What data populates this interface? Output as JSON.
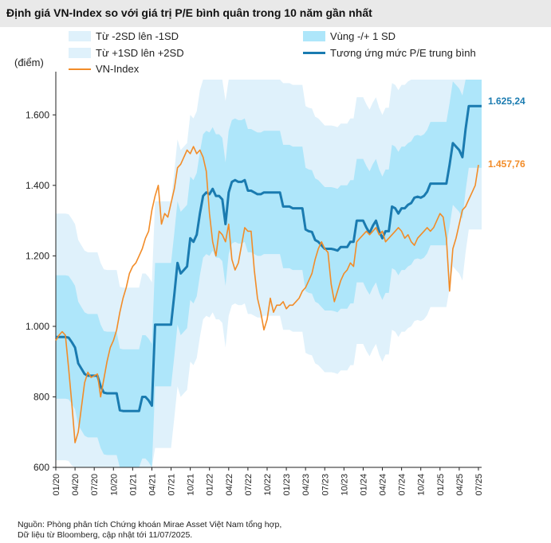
{
  "chart_data": {
    "type": "area",
    "title": "Định giá VN-Index so với giá trị P/E bình quân trong 10 năm gần nhất",
    "ylabel": "(điểm)",
    "ylim": [
      600,
      1700
    ],
    "yticks": [
      600,
      800,
      1000,
      1200,
      1400,
      1600
    ],
    "ytick_labels": [
      "600",
      "800",
      "1.000",
      "1.200",
      "1.400",
      "1.600"
    ],
    "x_tick_labels": [
      "01/20",
      "04/20",
      "07/20",
      "10/20",
      "01/21",
      "04/21",
      "07/21",
      "10/21",
      "01/22",
      "04/22",
      "07/22",
      "10/22",
      "01/23",
      "04/23",
      "07/23",
      "10/23",
      "01/24",
      "04/24",
      "07/24",
      "10/24",
      "01/25",
      "04/25",
      "07/25"
    ],
    "legend": [
      {
        "label": "Từ -2SD lên -1SD",
        "color": "#dff1fb"
      },
      {
        "label": "Vùng -/+ 1 SD",
        "color": "#aee6fa"
      },
      {
        "label": "Từ +1SD lên +2SD",
        "color": "#dff1fb"
      },
      {
        "label": "Tương ứng mức P/E trung bình",
        "color": "#1a7bb0"
      },
      {
        "label": "VN-Index",
        "color": "#f28c28"
      }
    ],
    "colors": {
      "outer_band": "#dff1fb",
      "inner_band": "#aee6fa",
      "pe_line": "#1a7bb0",
      "index_line": "#f28c28",
      "axis": "#222222"
    },
    "x_months": [
      0,
      0.5,
      1,
      1.5,
      2,
      2.5,
      3,
      3.5,
      4,
      4.5,
      5,
      5.5,
      6,
      6.5,
      7,
      7.5,
      8,
      8.5,
      9,
      9.5,
      10,
      10.5,
      11,
      11.5,
      12,
      12.5,
      13,
      13.5,
      14,
      14.5,
      15,
      15.5,
      16,
      16.5,
      17,
      17.5,
      18,
      18.5,
      19,
      19.5,
      20,
      20.5,
      21,
      21.5,
      22,
      22.5,
      23,
      23.5,
      24,
      24.5,
      25,
      25.5,
      26,
      26.5,
      27,
      27.5,
      28,
      28.5,
      29,
      29.5,
      30,
      30.5,
      31,
      31.5,
      32,
      32.5,
      33,
      33.5,
      34,
      34.5,
      35,
      35.5,
      36,
      36.5,
      37,
      37.5,
      38,
      38.5,
      39,
      39.5,
      40,
      40.5,
      41,
      41.5,
      42,
      42.5,
      43,
      43.5,
      44,
      44.5,
      45,
      45.5,
      46,
      46.5,
      47,
      47.5,
      48,
      48.5,
      49,
      49.5,
      50,
      50.5,
      51,
      51.5,
      52,
      52.5,
      53,
      53.5,
      54,
      54.5,
      55,
      55.5,
      56,
      56.5,
      57,
      57.5,
      58,
      58.5,
      59,
      59.5,
      60,
      60.5,
      61,
      61.5,
      62,
      62.5,
      63,
      63.5,
      64,
      64.5,
      65,
      65.5,
      66,
      66.5
    ],
    "series": [
      {
        "name": "Tương ứng mức P/E trung bình",
        "values": [
          970,
          970,
          970,
          970,
          968,
          955,
          940,
          895,
          880,
          865,
          860,
          860,
          860,
          860,
          830,
          812,
          810,
          810,
          810,
          810,
          762,
          760,
          760,
          760,
          760,
          760,
          760,
          800,
          800,
          790,
          775,
          1005,
          1005,
          1005,
          1005,
          1005,
          1005,
          1090,
          1180,
          1150,
          1160,
          1170,
          1250,
          1240,
          1260,
          1320,
          1370,
          1380,
          1375,
          1390,
          1370,
          1370,
          1360,
          1290,
          1380,
          1410,
          1415,
          1410,
          1410,
          1415,
          1385,
          1385,
          1380,
          1375,
          1375,
          1380,
          1380,
          1380,
          1380,
          1380,
          1380,
          1340,
          1340,
          1340,
          1335,
          1335,
          1335,
          1335,
          1275,
          1270,
          1268,
          1245,
          1240,
          1230,
          1220,
          1220,
          1220,
          1218,
          1215,
          1225,
          1225,
          1225,
          1240,
          1240,
          1300,
          1300,
          1300,
          1280,
          1265,
          1285,
          1300,
          1270,
          1250,
          1270,
          1270,
          1340,
          1335,
          1320,
          1335,
          1335,
          1345,
          1350,
          1365,
          1368,
          1365,
          1370,
          1382,
          1405,
          1405,
          1405,
          1405,
          1405,
          1405,
          1458,
          1520,
          1510,
          1500,
          1480,
          1560,
          1625,
          1625,
          1625,
          1625,
          1625
        ]
      },
      {
        "name": "VN-Index",
        "values": [
          960,
          975,
          985,
          975,
          880,
          780,
          670,
          700,
          770,
          840,
          870,
          855,
          860,
          865,
          800,
          850,
          900,
          940,
          960,
          990,
          1040,
          1080,
          1110,
          1150,
          1170,
          1180,
          1200,
          1220,
          1250,
          1270,
          1330,
          1370,
          1400,
          1290,
          1320,
          1310,
          1350,
          1390,
          1450,
          1460,
          1480,
          1500,
          1490,
          1510,
          1490,
          1500,
          1480,
          1440,
          1320,
          1240,
          1200,
          1270,
          1260,
          1240,
          1290,
          1190,
          1160,
          1180,
          1230,
          1280,
          1270,
          1270,
          1160,
          1080,
          1040,
          990,
          1020,
          1080,
          1040,
          1060,
          1060,
          1070,
          1050,
          1060,
          1060,
          1070,
          1080,
          1100,
          1110,
          1130,
          1150,
          1190,
          1220,
          1240,
          1220,
          1210,
          1120,
          1070,
          1100,
          1130,
          1150,
          1160,
          1180,
          1170,
          1240,
          1250,
          1260,
          1270,
          1260,
          1270,
          1280,
          1260,
          1270,
          1240,
          1250,
          1260,
          1270,
          1280,
          1270,
          1250,
          1260,
          1240,
          1230,
          1250,
          1260,
          1270,
          1280,
          1270,
          1280,
          1300,
          1320,
          1310,
          1250,
          1100,
          1220,
          1250,
          1290,
          1330,
          1340,
          1360,
          1380,
          1400,
          1458
        ]
      }
    ],
    "sd_bands": {
      "description": "mean ± 1 SD and mean ± 2 SD around the average P/E line",
      "inner_offset": 175,
      "outer_offset": 350
    },
    "end_labels": {
      "pe_line": "1.625,24",
      "index_line": "1.457,76"
    }
  },
  "source": {
    "line1": "Nguồn: Phòng phân tích Chứng khoán Mirae Asset Việt Nam tổng hợp,",
    "line2": "Dữ liệu từ Bloomberg, cập nhật tới 11/07/2025."
  }
}
